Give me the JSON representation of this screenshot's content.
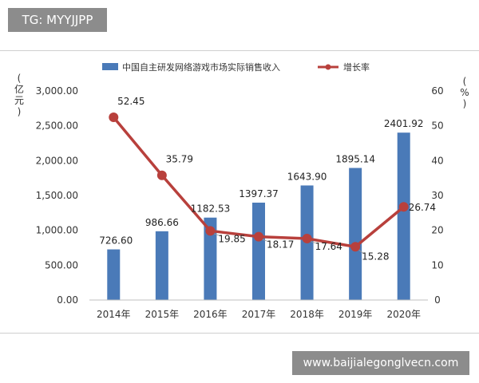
{
  "badges": {
    "top_left": "TG: MYYJJPP",
    "bottom_right": "www.baijialegonglvecn.com"
  },
  "chart_data": {
    "type": "bar",
    "categories": [
      "2014年",
      "2015年",
      "2016年",
      "2017年",
      "2018年",
      "2019年",
      "2020年"
    ],
    "series": [
      {
        "name": "中国自主研发网络游戏市场实际销售收入",
        "type": "bar",
        "axis": "left",
        "values": [
          726.6,
          986.66,
          1182.53,
          1397.37,
          1643.9,
          1895.14,
          2401.92
        ],
        "labels": [
          "726.60",
          "986.66",
          "1182.53",
          "1397.37",
          "1643.90",
          "1895.14",
          "2401.92"
        ],
        "color": "#4a7ab8"
      },
      {
        "name": "增长率",
        "type": "line",
        "axis": "right",
        "values": [
          52.45,
          35.79,
          19.85,
          18.17,
          17.64,
          15.28,
          26.74
        ],
        "labels": [
          "52.45",
          "35.79",
          "19.85",
          "18.17",
          "17.64",
          "15.28",
          "26.74"
        ],
        "color": "#b8403c"
      }
    ],
    "y_left": {
      "label": "亿元",
      "min": 0,
      "max": 3000,
      "ticks": [
        "0.00",
        "500.00",
        "1,000.00",
        "1,500.00",
        "2,000.00",
        "2,500.00",
        "3,000.00"
      ]
    },
    "y_right": {
      "label": "%",
      "min": 0,
      "max": 60,
      "ticks": [
        "0",
        "10",
        "20",
        "30",
        "40",
        "50",
        "60"
      ]
    },
    "legend": "top",
    "grid": false
  }
}
